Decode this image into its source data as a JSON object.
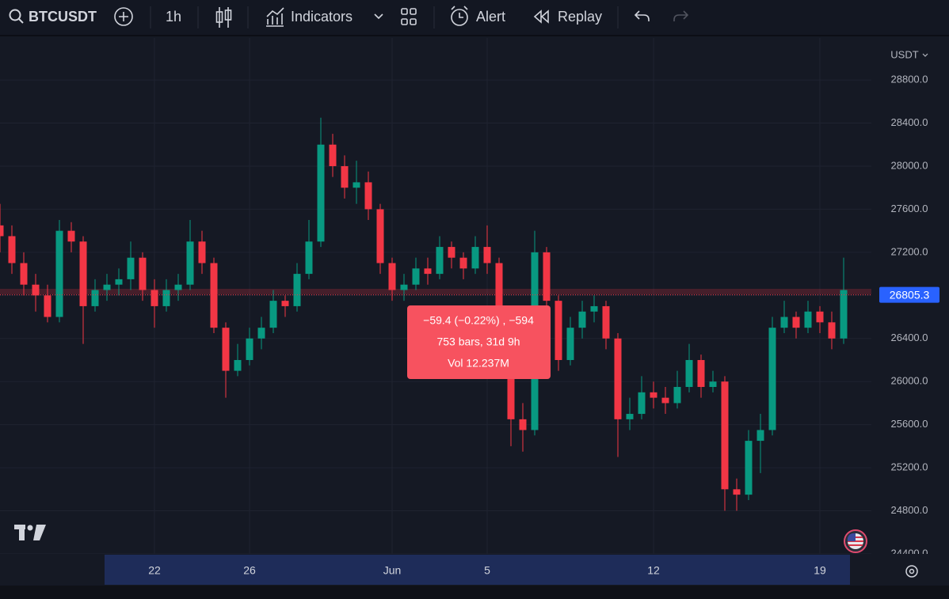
{
  "toolbar": {
    "symbol": "BTCUSDT",
    "interval": "1h",
    "indicators": "Indicators",
    "alert": "Alert",
    "replay": "Replay"
  },
  "chart_data": {
    "type": "candlestick",
    "currency": "USDT",
    "up_color": "#089981",
    "down_color": "#f23645",
    "categories": [
      null,
      null,
      null,
      null,
      null,
      null,
      null,
      null,
      null,
      null,
      null,
      null,
      null,
      "22",
      null,
      null,
      null,
      null,
      null,
      null,
      null,
      "26",
      null,
      null,
      null,
      null,
      null,
      null,
      null,
      null,
      null,
      null,
      null,
      "Jun",
      null,
      null,
      null,
      null,
      null,
      null,
      null,
      "5",
      null,
      null,
      null,
      null,
      null,
      null,
      null,
      null,
      null,
      null,
      null,
      null,
      null,
      "12",
      null,
      null,
      null,
      null,
      null,
      null,
      null,
      null,
      null,
      null,
      null,
      null,
      null,
      "19",
      null,
      null
    ],
    "open": [
      27450,
      27350,
      27100,
      26900,
      26800,
      26600,
      27400,
      27300,
      26700,
      26850,
      26900,
      26950,
      27150,
      26850,
      26700,
      26850,
      26900,
      27300,
      27100,
      26500,
      26100,
      26200,
      26400,
      26500,
      26750,
      26700,
      27000,
      27300,
      28200,
      28000,
      27800,
      27850,
      27600,
      27100,
      26850,
      26900,
      27050,
      27000,
      27250,
      27150,
      27050,
      27250,
      27100,
      26500,
      25650,
      25550,
      27200,
      26750,
      26200,
      26500,
      26650,
      26700,
      26400,
      25650,
      25700,
      25900,
      25850,
      25800,
      25950,
      26200,
      25950,
      26000,
      25000,
      24950,
      25450,
      25550,
      26500,
      26600,
      26500,
      26650,
      26550,
      26400
    ],
    "high": [
      27650,
      27450,
      27200,
      27000,
      26900,
      27500,
      27480,
      27350,
      26950,
      27000,
      27050,
      27300,
      27200,
      26950,
      26950,
      27000,
      27500,
      27400,
      27150,
      26550,
      26350,
      26500,
      26600,
      26850,
      26800,
      27100,
      27500,
      28450,
      28300,
      28100,
      28050,
      27950,
      27650,
      27150,
      27000,
      27150,
      27150,
      27350,
      27300,
      27200,
      27350,
      27450,
      27150,
      26550,
      25800,
      27400,
      27250,
      26800,
      26600,
      26750,
      26800,
      26750,
      26450,
      25850,
      26050,
      26000,
      25950,
      26100,
      26350,
      26250,
      26100,
      26050,
      25100,
      25550,
      25700,
      26600,
      26750,
      26650,
      26750,
      26700,
      26650,
      27150
    ],
    "low": [
      27200,
      27000,
      26800,
      26650,
      26550,
      26550,
      27200,
      26350,
      26650,
      26750,
      26800,
      26850,
      26750,
      26500,
      26650,
      26750,
      26850,
      27000,
      26450,
      25850,
      26050,
      26150,
      26300,
      26450,
      26600,
      26650,
      26950,
      27250,
      27900,
      27700,
      27650,
      27500,
      27000,
      26750,
      26750,
      26850,
      26900,
      26950,
      27050,
      26950,
      27000,
      27000,
      26400,
      25400,
      25350,
      25500,
      26700,
      26100,
      26150,
      26400,
      26550,
      26300,
      25300,
      25550,
      25650,
      25750,
      25700,
      25750,
      25900,
      25850,
      25900,
      24800,
      24800,
      24900,
      25150,
      25500,
      26450,
      26400,
      26450,
      26450,
      26300,
      26350
    ],
    "close": [
      27350,
      27100,
      26900,
      26800,
      26600,
      27400,
      27300,
      26700,
      26850,
      26900,
      26950,
      27150,
      26850,
      26700,
      26850,
      26900,
      27300,
      27100,
      26500,
      26100,
      26200,
      26400,
      26500,
      26750,
      26700,
      27000,
      27300,
      28200,
      28000,
      27800,
      27850,
      27600,
      27100,
      26850,
      26900,
      27050,
      27000,
      27250,
      27150,
      27050,
      27250,
      27100,
      26500,
      25650,
      25550,
      27200,
      26750,
      26200,
      26500,
      26650,
      26700,
      26400,
      25650,
      25700,
      25900,
      25850,
      25800,
      25950,
      26200,
      25950,
      26000,
      25000,
      24950,
      25450,
      25550,
      26500,
      26600,
      26500,
      26650,
      26550,
      26400,
      26850
    ],
    "ylim": [
      24400,
      29190
    ],
    "yticks": [
      {
        "value": 24400,
        "label": "24400.0"
      },
      {
        "value": 24800,
        "label": "24800.0"
      },
      {
        "value": 25200,
        "label": "25200.0"
      },
      {
        "value": 25600,
        "label": "25600.0"
      },
      {
        "value": 26000,
        "label": "26000.0"
      },
      {
        "value": 26400,
        "label": "26400.0"
      },
      {
        "value": 26800,
        "label": "26800.0"
      },
      {
        "value": 27200,
        "label": "27200.0"
      },
      {
        "value": 27600,
        "label": "27600.0"
      },
      {
        "value": 28000,
        "label": "28000.0"
      },
      {
        "value": 28400,
        "label": "28400.0"
      },
      {
        "value": 28800,
        "label": "28800.0"
      }
    ],
    "grid": true,
    "last_price": 26805.3,
    "measure": {
      "change": "−59.4 (−0.22%) , −594",
      "range": "753 bars, 31d 9h",
      "volume": "Vol 12.237M"
    }
  }
}
